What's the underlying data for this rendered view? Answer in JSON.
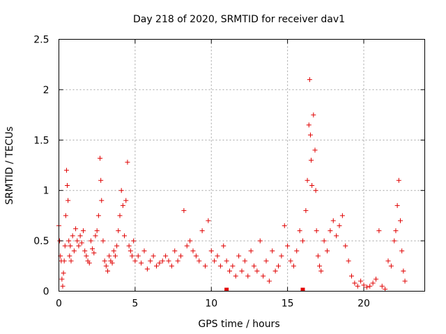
{
  "chart_data": {
    "type": "scatter",
    "title": "Day 218 of 2020, SRMTID for receiver dav1",
    "xlabel": "GPS time / hours",
    "ylabel": "SRMTID / TECUs",
    "xlim": [
      0,
      24
    ],
    "ylim": [
      0,
      2.5
    ],
    "xticks": [
      0,
      5,
      10,
      15,
      20
    ],
    "xtick_labels": [
      "0",
      "5",
      "10",
      "15",
      "20"
    ],
    "yticks": [
      0,
      0.5,
      1,
      1.5,
      2,
      2.5
    ],
    "ytick_labels": [
      "0",
      "0.5",
      "1",
      "1.5",
      "2",
      "2.5"
    ],
    "grid": true,
    "series": [
      {
        "name": "dav1",
        "marker": "+",
        "color": "#e00000",
        "x": [
          0.0,
          0.05,
          0.1,
          0.15,
          0.2,
          0.25,
          0.3,
          0.35,
          0.4,
          0.45,
          0.5,
          0.55,
          0.6,
          0.65,
          0.7,
          0.75,
          0.8,
          0.9,
          1.0,
          1.1,
          1.2,
          1.3,
          1.4,
          1.5,
          1.6,
          1.7,
          1.8,
          1.9,
          2.0,
          2.1,
          2.2,
          2.3,
          2.4,
          2.5,
          2.6,
          2.7,
          2.75,
          2.8,
          2.9,
          3.0,
          3.1,
          3.2,
          3.3,
          3.4,
          3.5,
          3.6,
          3.7,
          3.8,
          3.9,
          4.0,
          4.1,
          4.2,
          4.3,
          4.4,
          4.5,
          4.6,
          4.7,
          4.8,
          4.9,
          5.0,
          5.2,
          5.4,
          5.6,
          5.8,
          6.0,
          6.2,
          6.4,
          6.6,
          6.8,
          7.0,
          7.2,
          7.4,
          7.6,
          7.8,
          8.0,
          8.2,
          8.4,
          8.6,
          8.8,
          9.0,
          9.2,
          9.4,
          9.6,
          9.8,
          10.0,
          10.2,
          10.4,
          10.6,
          10.8,
          11.0,
          11.2,
          11.4,
          11.6,
          11.8,
          12.0,
          12.2,
          12.4,
          12.6,
          12.8,
          13.0,
          13.2,
          13.4,
          13.6,
          13.8,
          14.0,
          14.2,
          14.4,
          14.6,
          14.8,
          15.0,
          15.2,
          15.4,
          15.6,
          15.8,
          16.0,
          16.2,
          16.3,
          16.4,
          16.45,
          16.5,
          16.55,
          16.6,
          16.7,
          16.8,
          16.85,
          16.9,
          17.0,
          17.1,
          17.2,
          17.4,
          17.6,
          17.8,
          18.0,
          18.2,
          18.4,
          18.6,
          18.8,
          19.0,
          19.2,
          19.4,
          19.6,
          19.8,
          20.0,
          20.2,
          20.4,
          20.6,
          20.8,
          21.0,
          21.2,
          21.4,
          21.6,
          21.8,
          22.0,
          22.1,
          22.2,
          22.3,
          22.4,
          22.5,
          22.6,
          22.7
        ],
        "y": [
          0.65,
          0.5,
          0.35,
          0.3,
          0.12,
          0.05,
          0.18,
          0.3,
          0.45,
          0.75,
          1.2,
          1.05,
          0.9,
          0.5,
          0.35,
          0.45,
          0.3,
          0.55,
          0.4,
          0.62,
          0.5,
          0.45,
          0.55,
          0.48,
          0.6,
          0.4,
          0.35,
          0.3,
          0.28,
          0.5,
          0.42,
          0.38,
          0.55,
          0.6,
          0.75,
          1.32,
          1.1,
          0.9,
          0.5,
          0.3,
          0.25,
          0.2,
          0.35,
          0.3,
          0.28,
          0.4,
          0.35,
          0.45,
          0.6,
          0.75,
          1.0,
          0.85,
          0.55,
          0.9,
          1.28,
          0.45,
          0.4,
          0.35,
          0.5,
          0.3,
          0.35,
          0.28,
          0.4,
          0.22,
          0.3,
          0.35,
          0.25,
          0.28,
          0.3,
          0.35,
          0.3,
          0.25,
          0.4,
          0.3,
          0.35,
          0.8,
          0.45,
          0.5,
          0.4,
          0.35,
          0.3,
          0.6,
          0.25,
          0.7,
          0.4,
          0.3,
          0.35,
          0.25,
          0.45,
          0.3,
          0.2,
          0.25,
          0.15,
          0.35,
          0.2,
          0.3,
          0.15,
          0.4,
          0.25,
          0.2,
          0.5,
          0.15,
          0.3,
          0.1,
          0.4,
          0.2,
          0.25,
          0.35,
          0.65,
          0.45,
          0.3,
          0.25,
          0.4,
          0.6,
          0.5,
          0.8,
          1.1,
          1.65,
          2.1,
          1.55,
          1.3,
          1.05,
          1.75,
          1.4,
          1.0,
          0.6,
          0.35,
          0.25,
          0.2,
          0.5,
          0.4,
          0.6,
          0.7,
          0.55,
          0.65,
          0.75,
          0.45,
          0.3,
          0.15,
          0.08,
          0.05,
          0.1,
          0.06,
          0.04,
          0.05,
          0.08,
          0.12,
          0.6,
          0.05,
          0.02,
          0.3,
          0.25,
          0.5,
          0.6,
          0.85,
          1.1,
          0.7,
          0.4,
          0.2,
          0.1
        ]
      }
    ],
    "baseline_markers": [
      {
        "x": 11.0,
        "y": 0
      },
      {
        "x": 16.0,
        "y": 0
      }
    ]
  }
}
